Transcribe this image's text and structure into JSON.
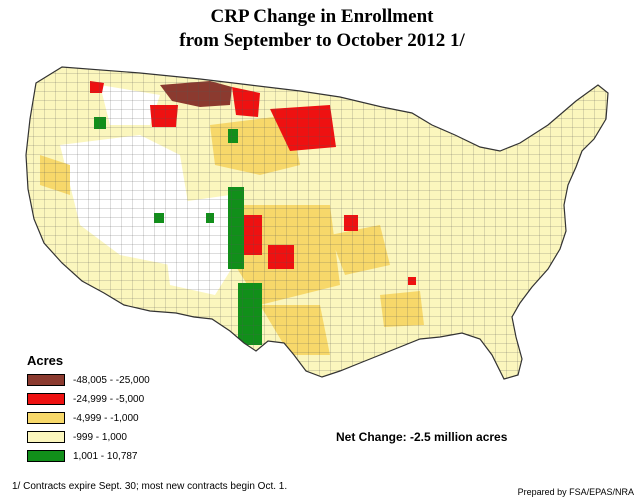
{
  "title_line1": "CRP Change in Enrollment",
  "title_line2": "from September to October 2012   1/",
  "legend": {
    "title": "Acres",
    "items": [
      {
        "label": "-48,005 - -25,000",
        "color": "#8b3a2f"
      },
      {
        "label": "-24,999 - -5,000",
        "color": "#ee1111"
      },
      {
        "label": "-4,999 - -1,000",
        "color": "#f7d86a"
      },
      {
        "label": "-999 - 1,000",
        "color": "#fbf6bd"
      },
      {
        "label": "1,001 - 10,787",
        "color": "#118f1a"
      }
    ]
  },
  "net_change": "Net Change: -2.5 million acres",
  "footnote": "1/ Contracts expire Sept. 30; most new contracts begin Oct. 1.",
  "prepared_by": "Prepared by FSA/EPAS/NRA",
  "colors": {
    "no_data": "#ffffff",
    "outline": "#333333"
  }
}
